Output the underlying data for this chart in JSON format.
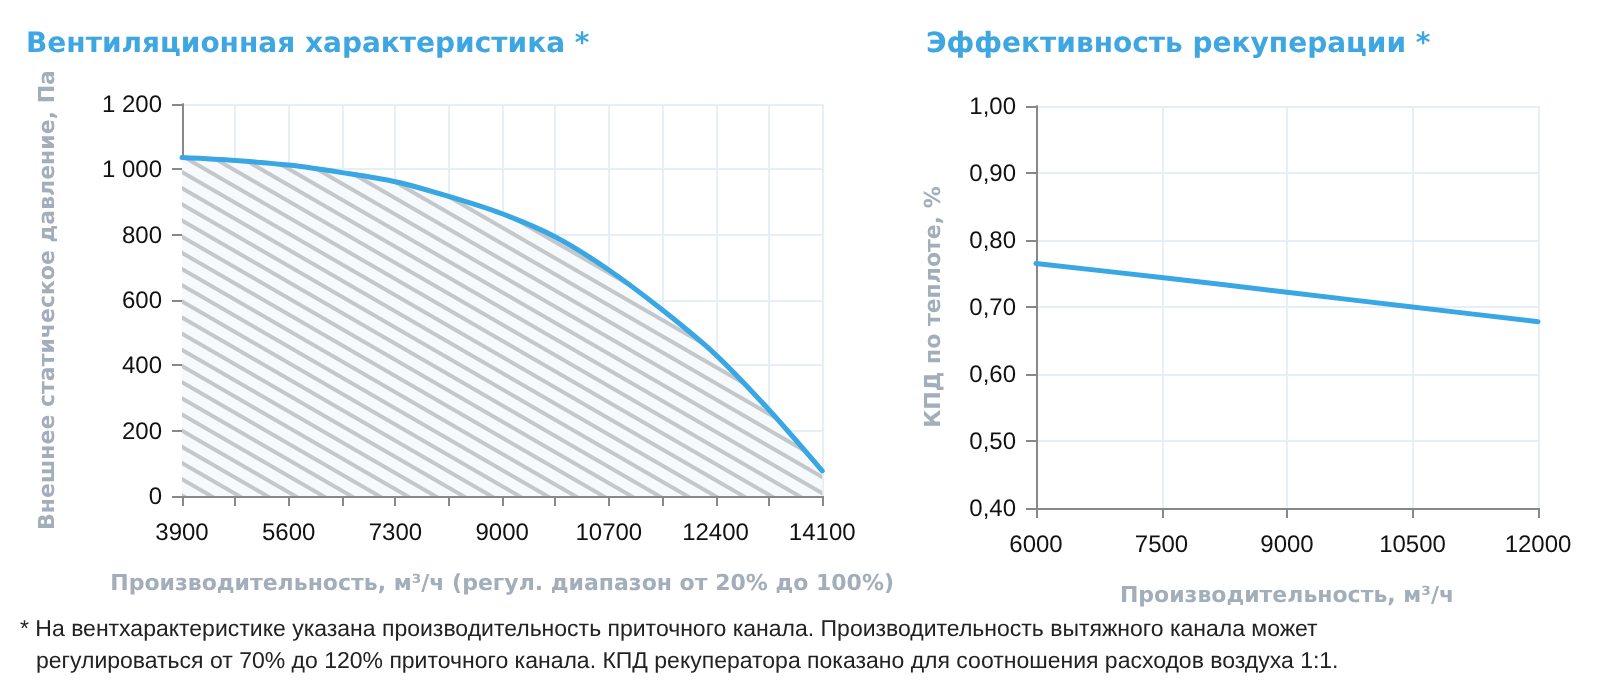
{
  "chart_data": [
    {
      "type": "area",
      "title": "Вентиляционная характеристика *",
      "xlabel": "Производительность, м³/ч (регул. диапазон от 20% до 100%)",
      "ylabel": "Внешнее статическое давление, Па",
      "x": [
        3900,
        4750,
        5600,
        6450,
        7300,
        8150,
        9000,
        9850,
        10700,
        11550,
        12400,
        13250,
        14100
      ],
      "series": [
        {
          "color": "#39a7e3",
          "values": [
            1036,
            1027,
            1013,
            990,
            962,
            917,
            864,
            793,
            692,
            570,
            433,
            264,
            77
          ]
        }
      ],
      "xlim": [
        3900,
        14100
      ],
      "xticks": [
        3900,
        {
          "value": 4750,
          "label": null
        },
        5600,
        {
          "value": 6450,
          "label": null
        },
        7300,
        {
          "value": 8150,
          "label": null
        },
        9000,
        {
          "value": 9850,
          "label": null
        },
        10700,
        {
          "value": 11550,
          "label": null
        },
        12400,
        {
          "value": 13250,
          "label": null
        },
        14100
      ],
      "ylim": [
        0,
        1200
      ],
      "yticks": [
        0,
        200,
        400,
        600,
        800,
        {
          "value": 1000,
          "label": "1 000"
        },
        {
          "value": 1200,
          "label": "1 200"
        }
      ],
      "grid": true,
      "annotations": [
        "* На вентхарактеристике указана производительность приточного канала. Производительность вытяжного канала может регулироваться от 70% до 120% приточного канала. КПД рекуператора показано для соотношения расходов воздуха 1:1."
      ]
    },
    {
      "type": "line",
      "title": "Эффективность рекуперации *",
      "xlabel": "Производительность, м³/ч",
      "ylabel": "КПД по теплоте, %",
      "x": [
        6000,
        7500,
        9000,
        10500,
        12000
      ],
      "series": [
        {
          "color": "#39a7e3",
          "values": [
            0.765,
            0.744,
            0.722,
            0.7,
            0.678
          ]
        }
      ],
      "xlim": [
        6000,
        12000
      ],
      "xticks": [
        6000,
        7500,
        9000,
        10500,
        12000
      ],
      "ylim": [
        0.4,
        1.0
      ],
      "yticks": [
        {
          "value": 0.4,
          "label": "0,40"
        },
        {
          "value": 0.5,
          "label": "0,50"
        },
        {
          "value": 0.6,
          "label": "0,60"
        },
        {
          "value": 0.7,
          "label": "0,70"
        },
        {
          "value": 0.8,
          "label": "0,80"
        },
        {
          "value": 0.9,
          "label": "0,90"
        },
        {
          "value": 1.0,
          "label": "1,00"
        }
      ],
      "grid": true
    }
  ]
}
